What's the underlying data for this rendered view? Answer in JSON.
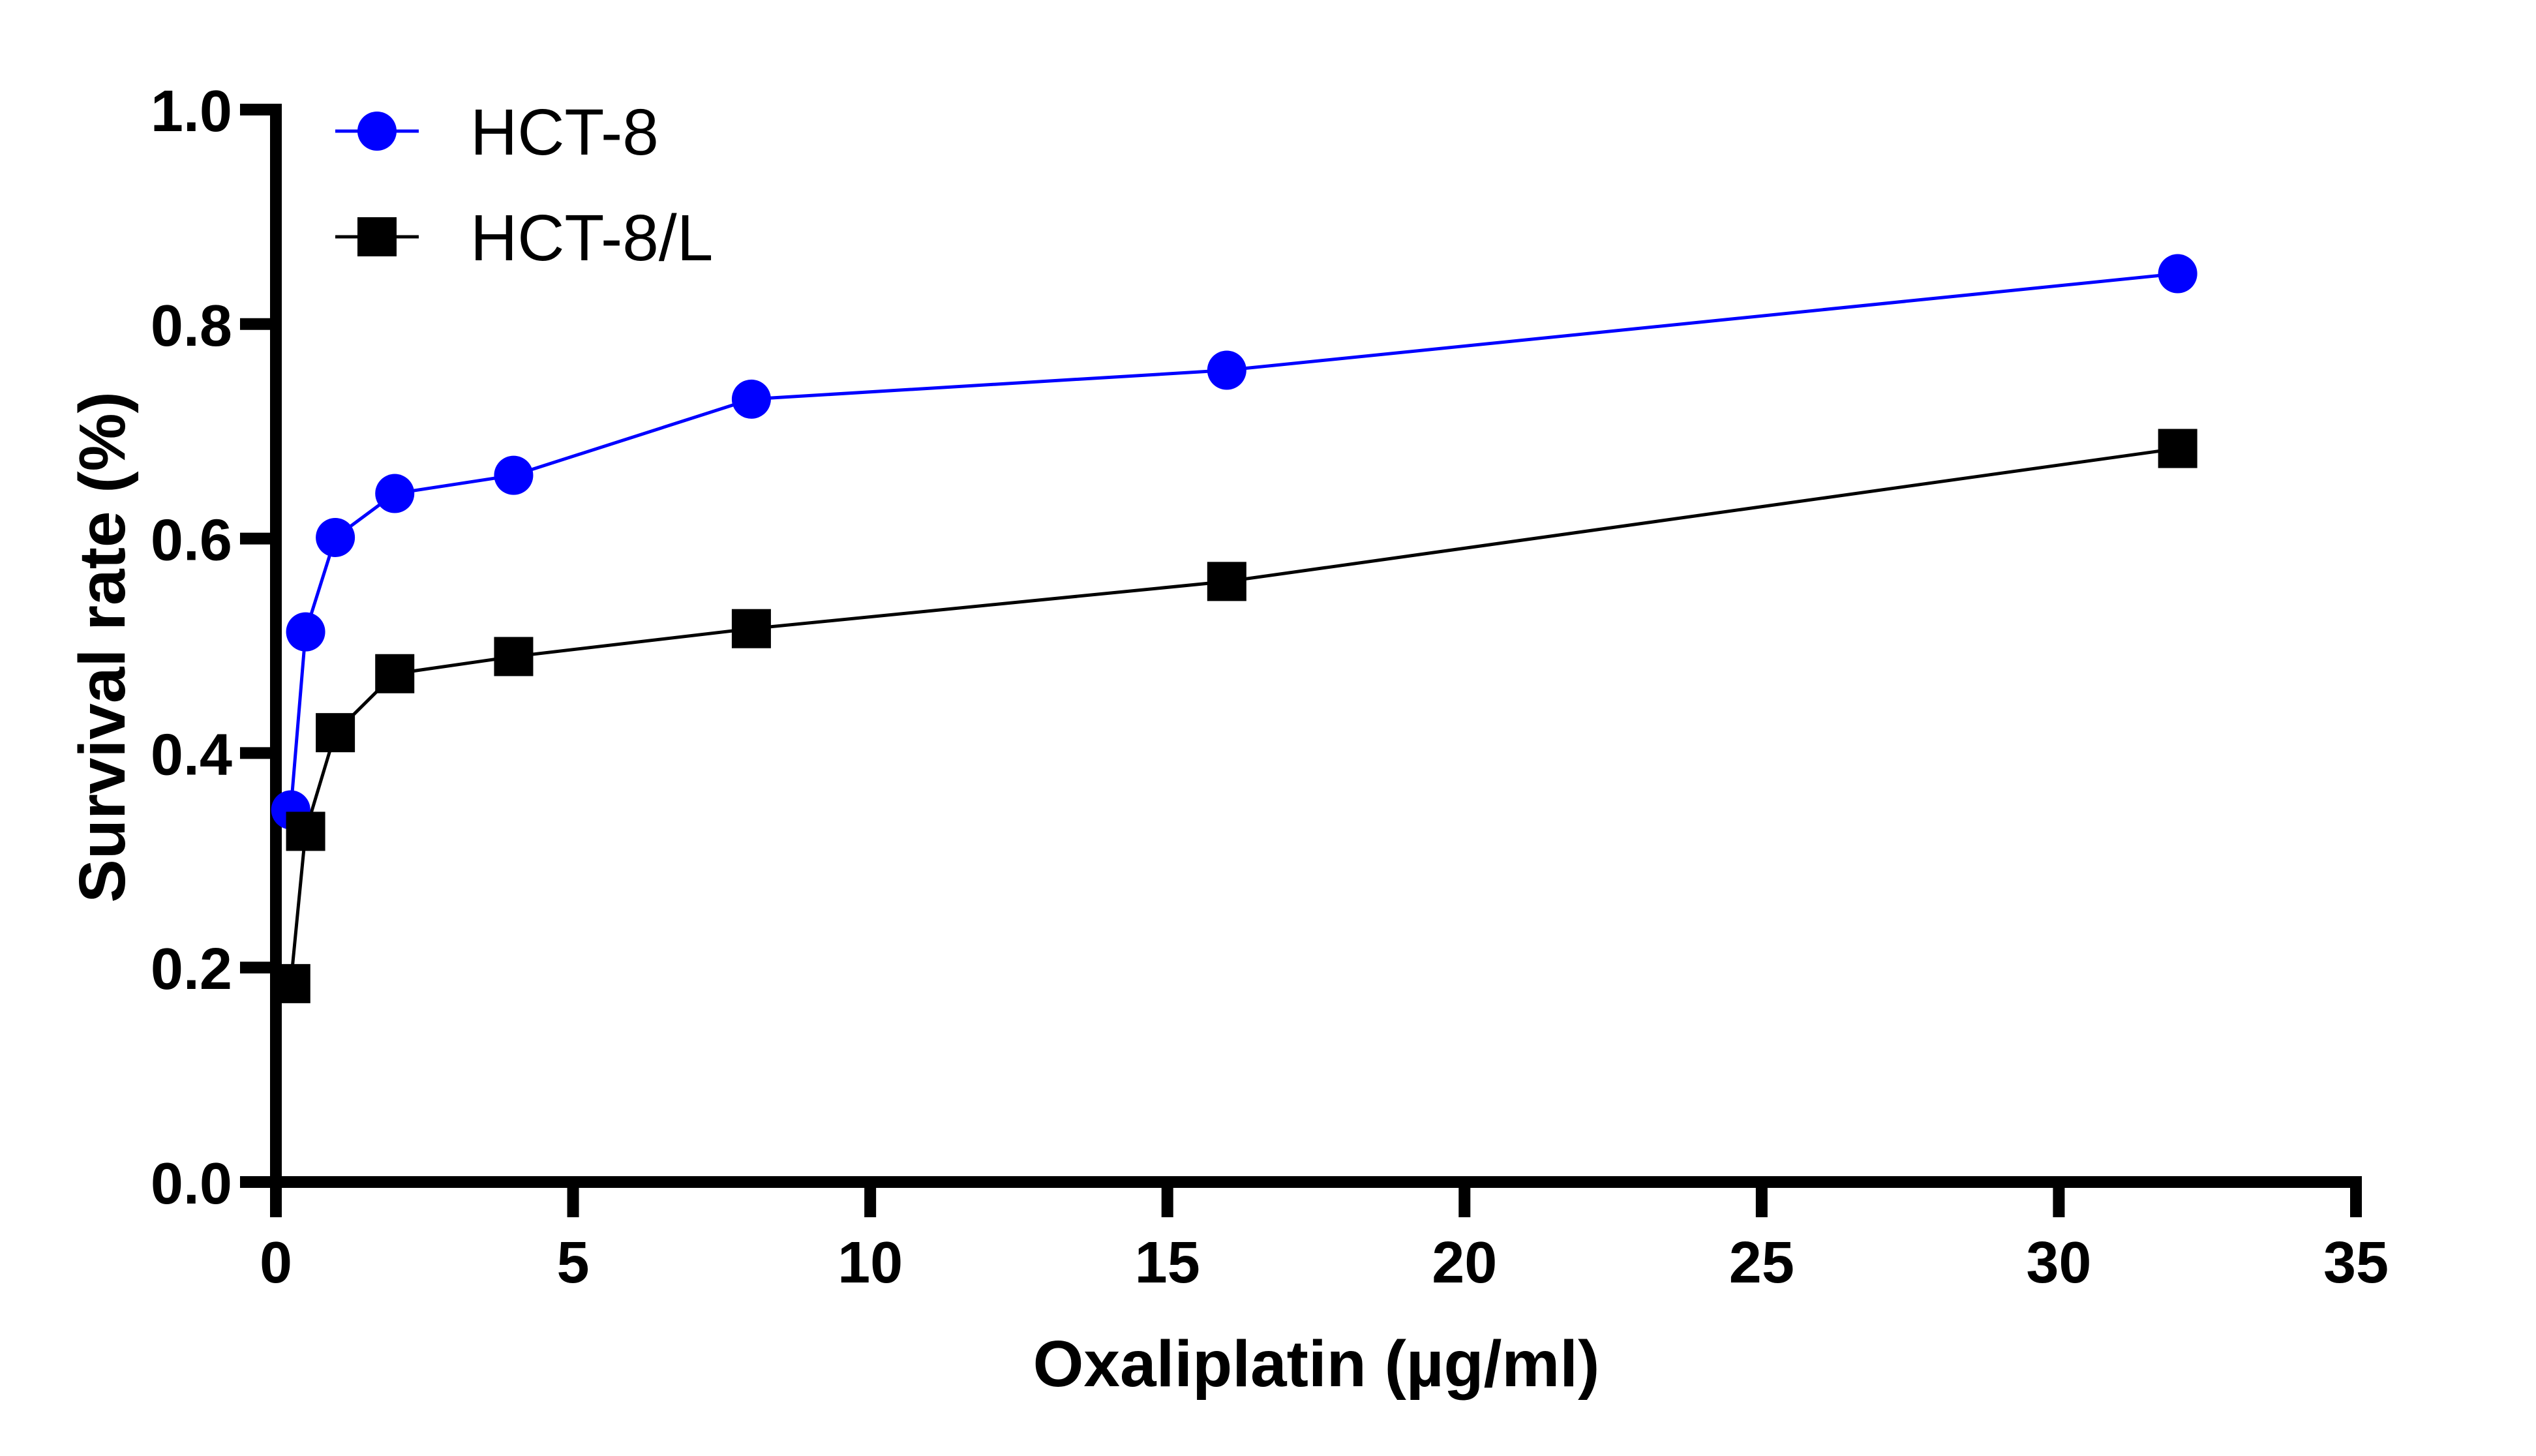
{
  "chart_data": {
    "type": "line",
    "title": "",
    "xlabel": "Oxaliplatin (µg/ml)",
    "ylabel": "Survival rate (%)",
    "xlim": [
      0,
      35
    ],
    "ylim": [
      0,
      1.0
    ],
    "x_ticks": [
      0,
      5,
      10,
      15,
      20,
      25,
      30,
      35
    ],
    "x_tick_labels": [
      "0",
      "5",
      "10",
      "15",
      "20",
      "25",
      "30",
      "35"
    ],
    "y_ticks": [
      0,
      0.2,
      0.4,
      0.6,
      0.8,
      1.0
    ],
    "y_tick_labels": [
      "0.0",
      "0.2",
      "0.4",
      "0.6",
      "0.8",
      "1.0"
    ],
    "grid": false,
    "legend_position": "top-left",
    "x": [
      0.25,
      0.5,
      1,
      2,
      4,
      8,
      16,
      32
    ],
    "series": [
      {
        "name": "HCT-8",
        "marker": "circle",
        "color": "#0000ff",
        "values": [
          0.347,
          0.513,
          0.601,
          0.642,
          0.659,
          0.73,
          0.757,
          0.847
        ]
      },
      {
        "name": "HCT-8/L",
        "marker": "square",
        "color": "#000000",
        "values": [
          0.185,
          0.327,
          0.419,
          0.474,
          0.49,
          0.516,
          0.56,
          0.684
        ]
      }
    ]
  }
}
